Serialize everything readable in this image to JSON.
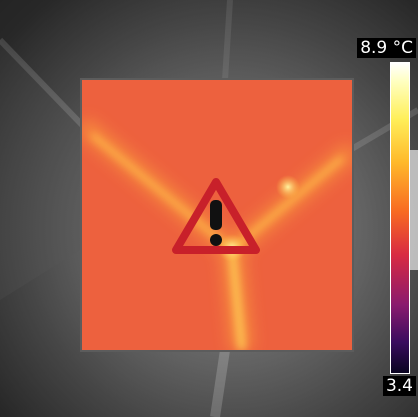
{
  "scale": {
    "max_label": "8.9 °C",
    "min_label": "3.4",
    "max_value": 8.9,
    "min_value": 3.4,
    "unit": "°C",
    "palette": "iron"
  },
  "measurement_area": {
    "warning_icon": "warning-triangle-icon",
    "icon_color": "#c8202a"
  },
  "colors": {
    "roi_fill": "#f0663f",
    "hot_streak": "#ffc440",
    "background": "#6a6a6a"
  }
}
